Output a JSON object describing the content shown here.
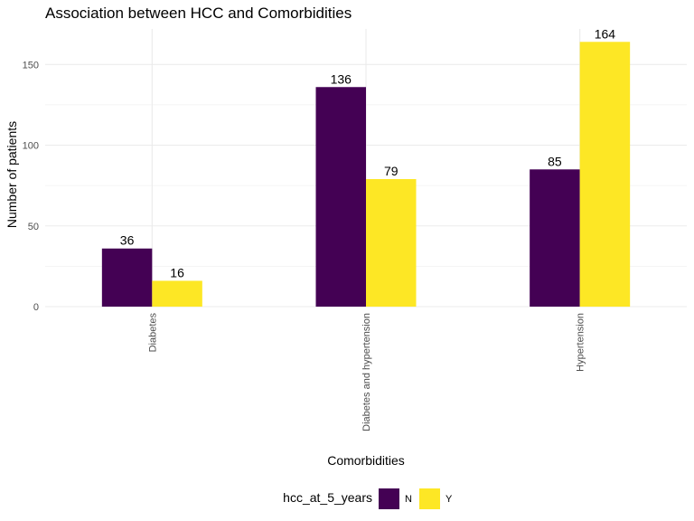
{
  "chart_data": {
    "type": "bar",
    "title": "Association between HCC and Comorbidities",
    "xlabel": "Comorbidities",
    "ylabel": "Number of patients",
    "categories": [
      "Diabetes",
      "Diabetes and hypertension",
      "Hypertension"
    ],
    "series": [
      {
        "name": "N",
        "values": [
          36,
          136,
          85
        ],
        "color": "#440154"
      },
      {
        "name": "Y",
        "values": [
          16,
          79,
          164
        ],
        "color": "#FDE725"
      }
    ],
    "data_labels": true,
    "ylim": [
      0,
      172
    ],
    "y_ticks": [
      0,
      50,
      100,
      150
    ],
    "y_tick_labels": [
      "0",
      "50",
      "100",
      "150"
    ],
    "grid": true,
    "legend": {
      "title": "hcc_at_5_years",
      "position": "bottom",
      "entries": [
        "N",
        "Y"
      ]
    }
  }
}
